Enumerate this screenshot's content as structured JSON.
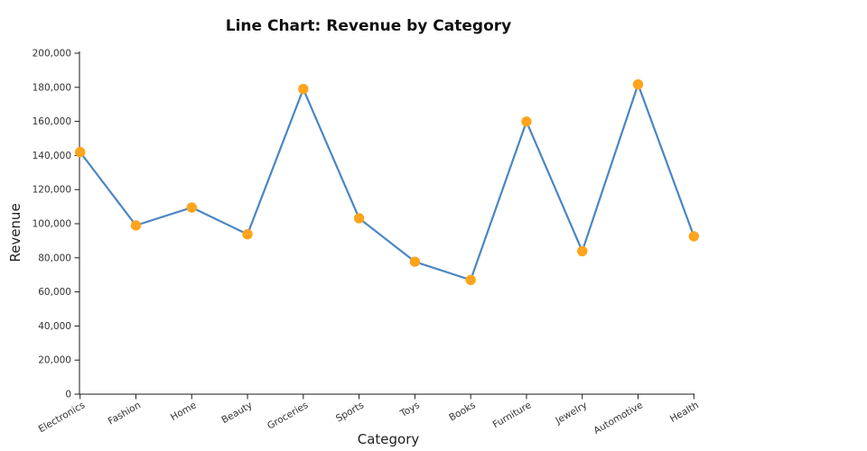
{
  "title": "Line Chart: Revenue by Category",
  "chart_data": {
    "type": "line",
    "title": "Line Chart: Revenue by Category",
    "xlabel": "Category",
    "ylabel": "Revenue",
    "categories": [
      "Electronics",
      "Fashion",
      "Home",
      "Beauty",
      "Groceries",
      "Sports",
      "Toys",
      "Books",
      "Furniture",
      "Jewelry",
      "Automotive",
      "Health"
    ],
    "values": [
      142000,
      99000,
      109500,
      93800,
      179000,
      103200,
      77700,
      67000,
      159900,
      83900,
      181700,
      92600
    ],
    "ylim": [
      0,
      200000
    ],
    "ytick_step": 20000,
    "ytick_labels": [
      "0",
      "20,000",
      "40,000",
      "60,000",
      "80,000",
      "100,000",
      "120,000",
      "140,000",
      "160,000",
      "180,000",
      "200,000"
    ],
    "grid": false,
    "legend": "none",
    "x_label_rotation_deg": -30,
    "line_color": "#4b86c2",
    "marker_color": "#ffa41c",
    "marker_radius": 5.7,
    "line_width": 2.2,
    "axis_color": "#1a1a1a",
    "tick_color": "#333333",
    "background_color": "#ffffff"
  }
}
